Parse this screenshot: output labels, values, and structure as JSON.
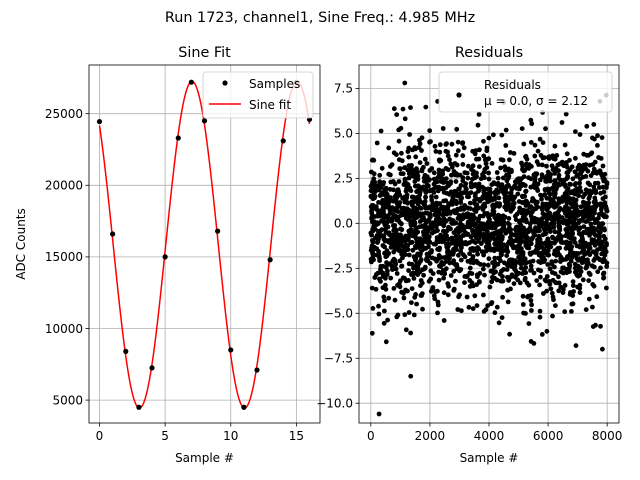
{
  "chart_data": {
    "suptitle": "Run 1723, channel1, Sine Freq.: 4.985 MHz",
    "panels": [
      {
        "type": "line",
        "title": "Sine Fit",
        "xlabel": "Sample #",
        "ylabel": "ADC Counts",
        "xlim": [
          -0.8,
          16.8
        ],
        "ylim": [
          3400,
          28400
        ],
        "xticks": [
          0,
          5,
          10,
          15
        ],
        "yticks": [
          5000,
          10000,
          15000,
          20000,
          25000
        ],
        "grid": true,
        "legend": {
          "position": "top-right",
          "entries": [
            "Samples",
            "Sine fit"
          ]
        },
        "samples": {
          "name": "Samples",
          "x": [
            0,
            1,
            2,
            3,
            4,
            5,
            6,
            7,
            8,
            9,
            10,
            11,
            12,
            13,
            14,
            15,
            16
          ],
          "y": [
            24450,
            16600,
            8400,
            4500,
            7250,
            15000,
            23300,
            27200,
            24500,
            16800,
            8500,
            4500,
            7100,
            14800,
            23100,
            27200,
            24600
          ]
        },
        "fit": {
          "name": "Sine fit",
          "color": "#ff0000",
          "offset": 15850,
          "amplitude": 11400,
          "period_samples": 8.01,
          "peak_at_sample": 7.05
        }
      },
      {
        "type": "scatter",
        "title": "Residuals",
        "xlabel": "Sample #",
        "xlim": [
          -400,
          8400
        ],
        "ylim": [
          -11.1,
          8.8
        ],
        "xticks": [
          0,
          2000,
          4000,
          6000,
          8000
        ],
        "yticks": [
          -10.0,
          -7.5,
          -5.0,
          -2.5,
          0.0,
          2.5,
          5.0,
          7.5
        ],
        "grid": true,
        "legend": {
          "position": "top-right",
          "entries": [
            "Residuals",
            "μ = 0.0, σ = 2.12"
          ]
        },
        "residuals": {
          "name": "Residuals",
          "count": 8000,
          "mean": 0.0,
          "sigma": 2.12,
          "min": -10.6,
          "max": 7.8,
          "note": "dense noise band across sample 0–8000"
        }
      }
    ]
  }
}
